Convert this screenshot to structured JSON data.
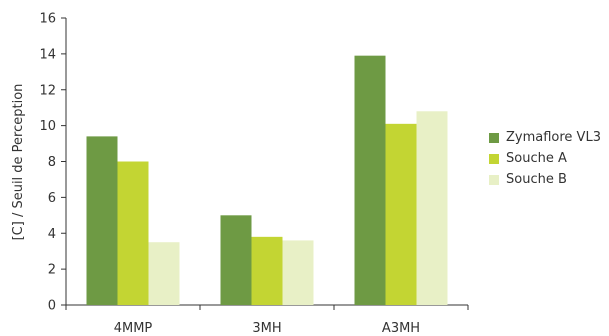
{
  "chart_data": {
    "type": "bar",
    "title": "",
    "xlabel": "",
    "ylabel": "[C] / Seuil de Perception",
    "ylim": [
      0,
      16
    ],
    "yticks": [
      0,
      2,
      4,
      6,
      8,
      10,
      12,
      14,
      16
    ],
    "categories": [
      "4MMP",
      "3MH",
      "A3MH"
    ],
    "series": [
      {
        "name": "Zymaflore VL3",
        "color": "#6e9a44",
        "values": [
          9.4,
          5.0,
          13.9
        ]
      },
      {
        "name": "Souche A",
        "color": "#c3d533",
        "values": [
          8.0,
          3.8,
          10.1
        ]
      },
      {
        "name": "Souche B",
        "color": "#e8f0c6",
        "values": [
          3.5,
          3.6,
          10.8
        ]
      }
    ],
    "grid": false,
    "legend_position": "right"
  }
}
